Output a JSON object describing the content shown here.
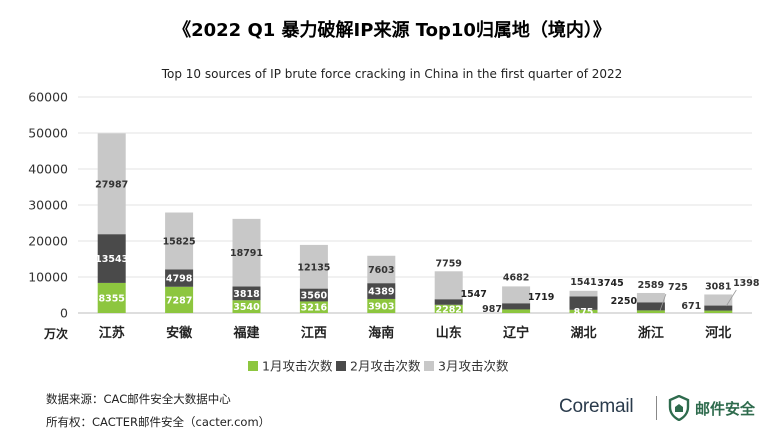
{
  "title": "《2022 Q1 暴力破解IP来源 Top10归属地（境内）》",
  "subtitle": "Top 10 sources of IP brute force cracking in China in the first quarter of 2022",
  "y_unit": "万次",
  "footer": {
    "source": "数据来源：CAC邮件安全大数据中心",
    "copyright": "所有权：CACTER邮件安全（cacter.com）"
  },
  "brand": {
    "coremail": "Coremail",
    "mail_security": "邮件安全"
  },
  "colors": {
    "jan": "#8dc63f",
    "feb": "#4a4a4a",
    "mar": "#c8c8c8"
  },
  "chart_data": {
    "type": "bar",
    "stacked": true,
    "categories": [
      "江苏",
      "安徽",
      "福建",
      "江西",
      "海南",
      "山东",
      "辽宁",
      "湖北",
      "浙江",
      "河北"
    ],
    "series": [
      {
        "name": "1月攻击次数",
        "values": [
          8355,
          7287,
          3540,
          3216,
          3903,
          2282,
          987,
          875,
          725,
          671
        ]
      },
      {
        "name": "2月攻击次数",
        "values": [
          13543,
          4798,
          3818,
          3560,
          4389,
          1547,
          1719,
          3745,
          2250,
          1398
        ]
      },
      {
        "name": "3月攻击次数",
        "values": [
          27987,
          15825,
          18791,
          12135,
          7603,
          7759,
          4682,
          1541,
          2589,
          3081
        ]
      }
    ],
    "y_ticks": [
      "0",
      "10000",
      "20000",
      "30000",
      "40000",
      "50000",
      "60000"
    ],
    "ylim": [
      0,
      60000
    ],
    "legend": "bottom",
    "grid": true
  }
}
